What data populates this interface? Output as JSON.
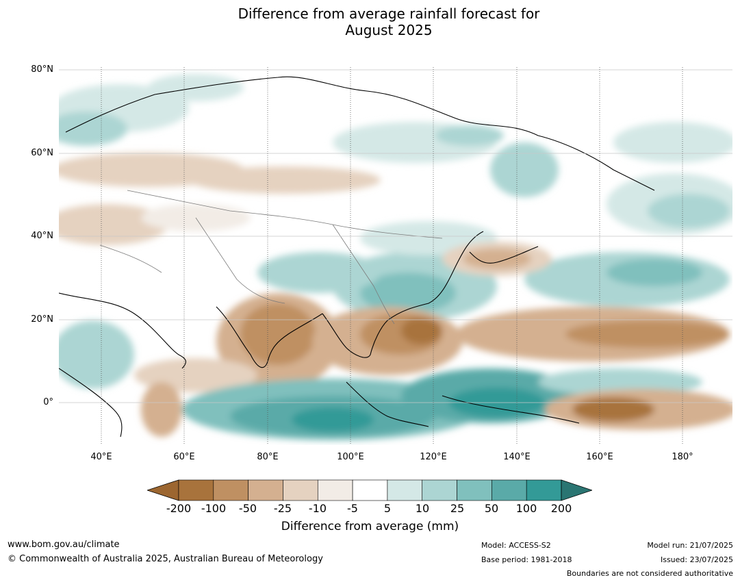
{
  "title": {
    "line1": "Difference from average rainfall forecast for",
    "line2": "August 2025"
  },
  "map": {
    "lat_labels": [
      "80°N",
      "60°N",
      "40°N",
      "20°N",
      "0°"
    ],
    "lon_labels": [
      "40°E",
      "60°E",
      "80°E",
      "100°E",
      "120°E",
      "140°E",
      "160°E",
      "180°"
    ]
  },
  "colorbar": {
    "ticks": [
      "-200",
      "-100",
      "-50",
      "-25",
      "-10",
      "-5",
      "5",
      "10",
      "25",
      "50",
      "100",
      "200"
    ],
    "colors": {
      "under": "#9c6630",
      "bins": [
        "#a8733c",
        "#bf9062",
        "#d4b090",
        "#e5d2c0",
        "#f2ece6",
        "#ffffff",
        "#d4e8e6",
        "#acd5d3",
        "#80c0bd",
        "#5aaaa8",
        "#339a97"
      ],
      "over": "#2a7572"
    },
    "label": "Difference from average (mm)"
  },
  "footer": {
    "website": "www.bom.gov.au/climate",
    "copyright": "© Commonwealth of Australia 2025, Australian Bureau of Meteorology",
    "model": "Model: ACCESS-S2",
    "base_period": "Base period: 1981-2018",
    "model_run": "Model run: 21/07/2025",
    "issued": "Issued: 23/07/2025",
    "disclaimer": "Boundaries are not considered authoritative"
  }
}
